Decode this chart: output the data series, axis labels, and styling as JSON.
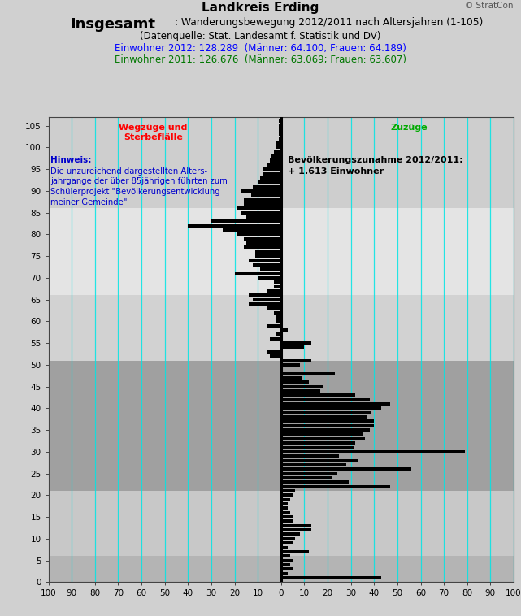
{
  "title_main": "Landkreis Erding",
  "title_copyright": "© StratCon",
  "title_bold": "Insgesamt",
  "title_sub": ": Wanderungsbewegung 2012/2011 nach Altersjahren (1-105)",
  "title_source": "(Datenquelle: Stat. Landesamt f. Statistik und DV)",
  "title_ew2012": "Einwohner 2012: 128.289  (Männer: 64.100; Frauen: 64.189)",
  "title_ew2011": "Einwohner 2011: 126.676  (Männer: 63.069; Frauen: 63.607)",
  "label_left": "Wegzüge und\nSterbeflälle",
  "label_right": "Zuzüge",
  "label_hinweis_title": "Hinweis:",
  "label_hinweis_body": "Die unzureichend dargestellten Alters-\njahrgange der über 85jährigen führten zum\nSchülerprojekt \"Bevölkerungsentwicklung\nmeiner Gemeinde\"",
  "label_zunahme": "Bevölkerungszunahme 2012/2011:\n+ 1.613 Einwohner",
  "xlim": [
    -100,
    100
  ],
  "ylim": [
    0,
    107
  ],
  "xticks": [
    -100,
    -90,
    -80,
    -70,
    -60,
    -50,
    -40,
    -30,
    -20,
    -10,
    0,
    10,
    20,
    30,
    40,
    50,
    60,
    70,
    80,
    90,
    100
  ],
  "xtick_labels": [
    "100",
    "90",
    "80",
    "70",
    "60",
    "50",
    "40",
    "30",
    "20",
    "10",
    "0",
    "10",
    "20",
    "30",
    "40",
    "50",
    "60",
    "70",
    "80",
    "90",
    "100"
  ],
  "bg_bands": [
    {
      "ymin": 0,
      "ymax": 6,
      "color": "#b4b4b4"
    },
    {
      "ymin": 6,
      "ymax": 21,
      "color": "#c8c8c8"
    },
    {
      "ymin": 21,
      "ymax": 51,
      "color": "#a0a0a0"
    },
    {
      "ymin": 51,
      "ymax": 66,
      "color": "#d2d2d2"
    },
    {
      "ymin": 66,
      "ymax": 86,
      "color": "#e4e4e4"
    },
    {
      "ymin": 86,
      "ymax": 107,
      "color": "#cecece"
    }
  ],
  "net_values": [
    43,
    3,
    5,
    4,
    5,
    4,
    12,
    3,
    5,
    6,
    8,
    13,
    13,
    5,
    5,
    4,
    3,
    3,
    4,
    5,
    6,
    47,
    29,
    22,
    24,
    56,
    28,
    33,
    25,
    79,
    31,
    32,
    36,
    35,
    38,
    40,
    40,
    37,
    39,
    43,
    47,
    38,
    32,
    17,
    18,
    12,
    9,
    23,
    0,
    8,
    13,
    -5,
    -6,
    10,
    13,
    -5,
    -2,
    3,
    -6,
    -2,
    -2,
    -3,
    -6,
    -14,
    -12,
    -14,
    -6,
    -3,
    -3,
    -10,
    -20,
    -9,
    -12,
    -14,
    -11,
    -11,
    -16,
    -15,
    -16,
    -19,
    -25,
    -40,
    -30,
    -15,
    -17,
    -19,
    -16,
    -16,
    -13,
    -17,
    -12,
    -10,
    -9,
    -8,
    -8,
    -6,
    -5,
    -4,
    -3,
    -2,
    -2,
    -1,
    -1,
    -1,
    -1,
    -1,
    0,
    0
  ],
  "bar_color": "#000000",
  "bar_height": 0.75,
  "center_line_color": "#000000",
  "grid_color": "#00e5e5",
  "grid_alpha": 0.85,
  "grid_linewidth": 0.9,
  "bg_figure": "#d0d0d0",
  "bg_plot": "#d0d0d0"
}
